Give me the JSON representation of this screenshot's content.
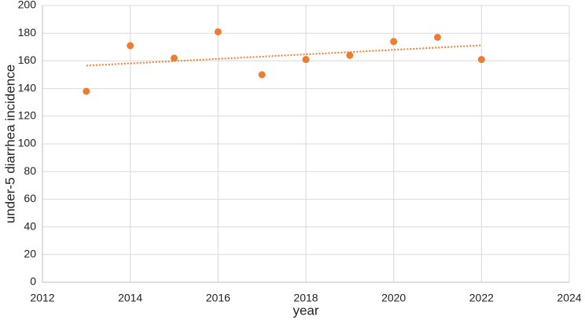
{
  "chart_data": {
    "type": "scatter",
    "x_label": "year",
    "y_label": "under-5 diarrhea incidence",
    "series": [
      {
        "name": "under-5 diarrhea incidence",
        "color": "#ed7d31",
        "x": [
          2013,
          2014,
          2015,
          2016,
          2017,
          2018,
          2019,
          2020,
          2021,
          2022
        ],
        "values": [
          138,
          171,
          162,
          181,
          150,
          161,
          164,
          174,
          177,
          161
        ]
      }
    ],
    "trendline": "linear",
    "xlim": [
      2012,
      2024
    ],
    "xticks": [
      2012,
      2014,
      2016,
      2018,
      2020,
      2022,
      2024
    ],
    "ylim": [
      0,
      200
    ],
    "yticks": [
      0,
      20,
      40,
      60,
      80,
      100,
      120,
      140,
      160,
      180,
      200
    ],
    "grid": true
  }
}
